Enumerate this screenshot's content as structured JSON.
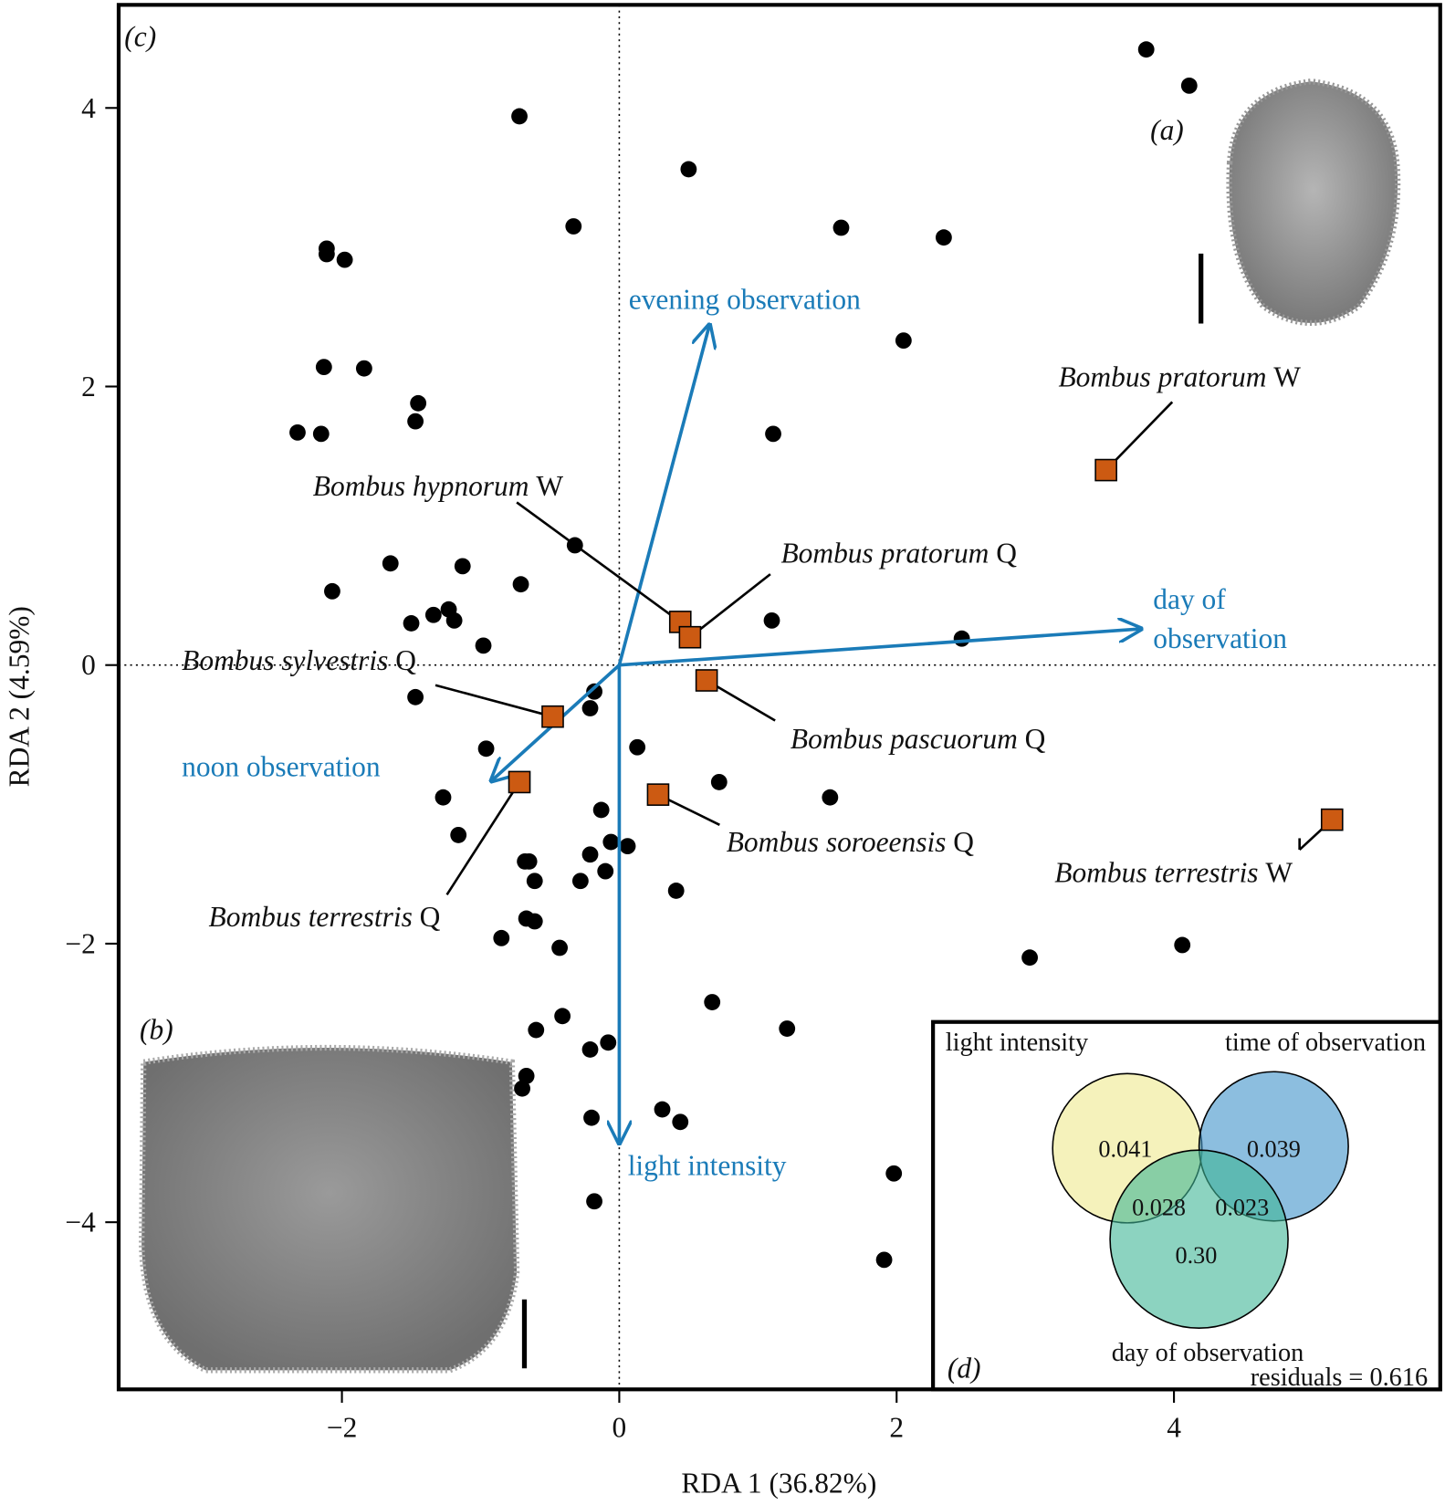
{
  "chart_data": {
    "type": "biplot",
    "panel_label": "(c)",
    "x_label": "RDA 1 (36.82%)",
    "y_label": "RDA 2 (4.59%)",
    "xlim": [
      -3.61,
      5.92
    ],
    "ylim": [
      -5.2,
      4.74
    ],
    "xticks": [
      {
        "value": -2,
        "label": "−2"
      },
      0,
      2,
      4
    ],
    "yticks": [
      {
        "value": -4,
        "label": "−4"
      },
      {
        "value": -2,
        "label": "−2"
      },
      0,
      2,
      4
    ],
    "zero_lines": true,
    "sites": {
      "color": "#000000",
      "x": [
        3.8,
        4.11,
        -0.72,
        0.5,
        -0.33,
        1.6,
        2.34,
        -2.11,
        -2.11,
        -1.98,
        2.05,
        -2.13,
        -1.84,
        -1.45,
        -1.47,
        -2.32,
        -2.15,
        1.11,
        -0.32,
        -1.65,
        -1.13,
        -0.71,
        -2.07,
        -1.34,
        -1.23,
        -1.19,
        -1.5,
        1.1,
        -0.98,
        2.47,
        -0.18,
        -1.47,
        -0.21,
        -0.96,
        0.13,
        0.72,
        -1.27,
        1.52,
        -0.13,
        -1.16,
        -0.06,
        0.06,
        -0.21,
        -0.65,
        -0.68,
        -0.1,
        -0.28,
        -0.61,
        0.41,
        -0.67,
        -0.61,
        -0.85,
        -0.43,
        2.96,
        4.06,
        0.67,
        -0.41,
        1.21,
        -0.6,
        -0.08,
        -0.21,
        -0.67,
        -0.7,
        0.31,
        -0.2,
        0.44,
        1.98,
        -0.18,
        1.91
      ],
      "y": [
        4.42,
        4.16,
        3.94,
        3.56,
        3.15,
        3.14,
        3.07,
        2.99,
        2.95,
        2.91,
        2.33,
        2.14,
        2.13,
        1.88,
        1.75,
        1.67,
        1.66,
        1.66,
        0.86,
        0.73,
        0.71,
        0.58,
        0.53,
        0.36,
        0.4,
        0.32,
        0.3,
        0.32,
        0.14,
        0.19,
        -0.19,
        -0.23,
        -0.31,
        -0.6,
        -0.59,
        -0.84,
        -0.95,
        -0.95,
        -1.04,
        -1.22,
        -1.27,
        -1.3,
        -1.36,
        -1.41,
        -1.41,
        -1.48,
        -1.55,
        -1.55,
        -1.62,
        -1.82,
        -1.84,
        -1.96,
        -2.03,
        -2.1,
        -2.01,
        -2.42,
        -2.52,
        -2.61,
        -2.62,
        -2.71,
        -2.76,
        -2.95,
        -3.04,
        -3.19,
        -3.25,
        -3.28,
        -3.65,
        -3.85,
        -4.27
      ]
    },
    "species": {
      "color": "#cc5a12",
      "points": [
        {
          "name": "Bombus pratorum",
          "caste": "W",
          "x": 3.51,
          "y": 1.4
        },
        {
          "name": "Bombus hypnorum",
          "caste": "W",
          "x": 0.44,
          "y": 0.31
        },
        {
          "name": "Bombus pratorum",
          "caste": "Q",
          "x": 0.51,
          "y": 0.2
        },
        {
          "name": "Bombus pascuorum",
          "caste": "Q",
          "x": 0.63,
          "y": -0.11
        },
        {
          "name": "Bombus sylvestris",
          "caste": "Q",
          "x": -0.48,
          "y": -0.37
        },
        {
          "name": "Bombus terrestris",
          "caste": "Q",
          "x": -0.72,
          "y": -0.84
        },
        {
          "name": "Bombus soroeensis",
          "caste": "Q",
          "x": 0.28,
          "y": -0.93
        },
        {
          "name": "Bombus terrestris",
          "caste": "W",
          "x": 5.14,
          "y": -1.11
        }
      ]
    },
    "arrows": {
      "color": "#1a7bb8",
      "vectors": [
        {
          "name": "evening observation",
          "x": 0.65,
          "y": 2.44
        },
        {
          "name": "day of observation",
          "x": 3.76,
          "y": 0.26
        },
        {
          "name": "noon observation",
          "x": -0.92,
          "y": -0.83
        },
        {
          "name": "light intensity",
          "x": 0,
          "y": -3.43
        }
      ]
    },
    "insets": [
      {
        "panel_label": "(a)"
      },
      {
        "panel_label": "(b)"
      }
    ],
    "venn": {
      "panel_label": "(d)",
      "sets": [
        {
          "name": "light intensity",
          "color": "#efe98e"
        },
        {
          "name": "time of observation",
          "color": "#3f93c9"
        },
        {
          "name": "day of observation",
          "color": "#3fb596"
        }
      ],
      "regions": [
        "0.041",
        "0.039",
        "0.028",
        "0.023",
        "0.30"
      ],
      "residuals": "residuals = 0.616"
    }
  }
}
